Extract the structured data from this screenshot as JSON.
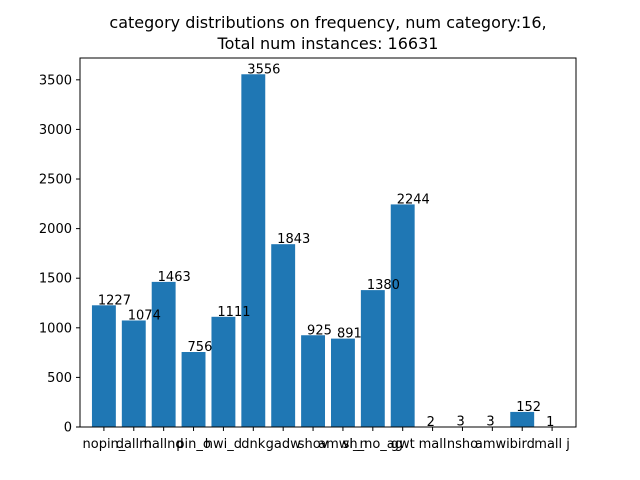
{
  "chart_data": {
    "type": "bar",
    "title_lines": [
      "category distributions on frequency, num category:16,",
      "Total num instances: 16631"
    ],
    "xlabel": "",
    "ylabel": "",
    "ylim": [
      0,
      3720
    ],
    "yticks": [
      0,
      500,
      1000,
      1500,
      2000,
      2500,
      3000,
      3500
    ],
    "grid": false,
    "bar_color": "#1f77b4",
    "categories": [
      "nopin_",
      "dallm",
      "hallnd",
      "pin_o",
      "hwi_d",
      "dnk",
      "gadw",
      "shov",
      "amwi_n",
      "sh_no_ag",
      "gwt",
      "mall",
      "nsho",
      "amwi",
      "bird",
      "mall j"
    ],
    "values": [
      1227,
      1074,
      1463,
      756,
      1111,
      3556,
      1843,
      925,
      891,
      1380,
      2244,
      2,
      3,
      3,
      152,
      1
    ]
  }
}
